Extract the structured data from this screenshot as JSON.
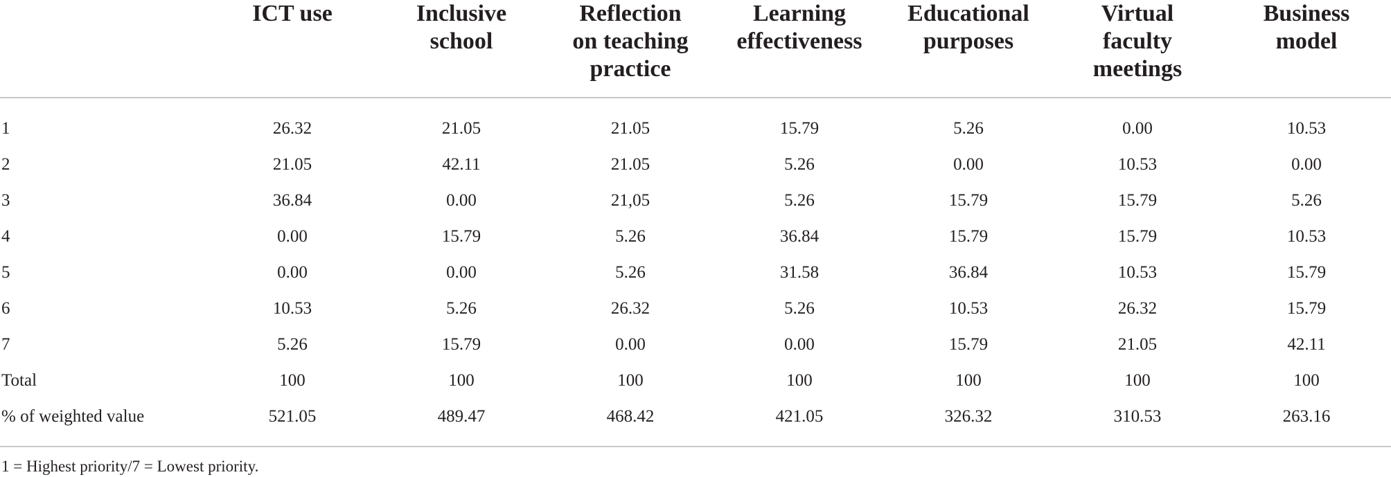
{
  "table": {
    "headers": [
      "",
      "ICT use",
      "Inclusive school",
      "Reflection on teaching practice",
      "Learning effectiveness",
      "Educational purposes",
      "Virtual faculty meetings",
      "Business model"
    ],
    "header_lines": [
      [
        ""
      ],
      [
        "ICT use"
      ],
      [
        "Inclusive",
        "school"
      ],
      [
        "Reflection",
        "on teaching",
        "practice"
      ],
      [
        "Learning",
        "effectiveness"
      ],
      [
        "Educational",
        "purposes"
      ],
      [
        "Virtual",
        "faculty",
        "meetings"
      ],
      [
        "Business",
        "model"
      ]
    ],
    "rows": [
      [
        "1",
        "26.32",
        "21.05",
        "21.05",
        "15.79",
        "5.26",
        "0.00",
        "10.53"
      ],
      [
        "2",
        "21.05",
        "42.11",
        "21.05",
        "5.26",
        "0.00",
        "10.53",
        "0.00"
      ],
      [
        "3",
        "36.84",
        "0.00",
        "21,05",
        "5.26",
        "15.79",
        "15.79",
        "5.26"
      ],
      [
        "4",
        "0.00",
        "15.79",
        "5.26",
        "36.84",
        "15.79",
        "15.79",
        "10.53"
      ],
      [
        "5",
        "0.00",
        "0.00",
        "5.26",
        "31.58",
        "36.84",
        "10.53",
        "15.79"
      ],
      [
        "6",
        "10.53",
        "5.26",
        "26.32",
        "5.26",
        "10.53",
        "26.32",
        "15.79"
      ],
      [
        "7",
        "5.26",
        "15.79",
        "0.00",
        "0.00",
        "15.79",
        "21.05",
        "42.11"
      ],
      [
        "Total",
        "100",
        "100",
        "100",
        "100",
        "100",
        "100",
        "100"
      ],
      [
        "% of weighted value",
        "521.05",
        "489.47",
        "468.42",
        "421.05",
        "326.32",
        "310.53",
        "263.16"
      ]
    ]
  },
  "footnote": "1 = Highest priority/7 = Lowest priority."
}
